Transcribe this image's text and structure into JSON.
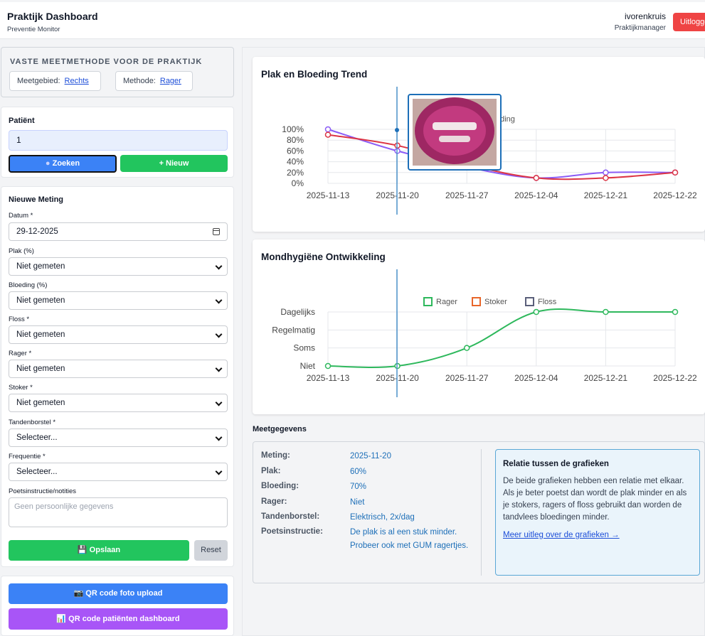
{
  "header": {
    "title": "Praktijk Dashboard",
    "subtitle": "Preventie Monitor",
    "user": "ivorenkruis",
    "role": "Praktijkmanager",
    "logout": "Uitloggen"
  },
  "method": {
    "title": "VASTE MEETMETHODE VOOR DE PRAKTIJK",
    "area_label": "Meetgebied:",
    "area_value": "Rechts",
    "method_label": "Methode:",
    "method_value": "Rager"
  },
  "patient": {
    "title": "Patiënt",
    "value": "1",
    "search": "Zoeken",
    "new": "+ Nieuw"
  },
  "form": {
    "title": "Nieuwe Meting",
    "date_label": "Datum *",
    "date_value": "29-12-2025",
    "plak_label": "Plak (%)",
    "plak_value": "Niet gemeten",
    "bloeding_label": "Bloeding (%)",
    "bloeding_value": "Niet gemeten",
    "floss_label": "Floss *",
    "floss_value": "Niet gemeten",
    "rager_label": "Rager *",
    "rager_value": "Niet gemeten",
    "stoker_label": "Stoker *",
    "stoker_value": "Niet gemeten",
    "tandenborstel_label": "Tandenborstel *",
    "tandenborstel_value": "Selecteer...",
    "frequentie_label": "Frequentie *",
    "frequentie_value": "Selecteer...",
    "notes_label": "Poetsinstructie/notities",
    "notes_placeholder": "Geen persoonlijke gegevens",
    "save": "Opslaan",
    "reset": "Reset"
  },
  "qr": {
    "photo": "QR code foto upload",
    "dashboard": "QR code patiënten dashboard"
  },
  "chart1": {
    "title": "Plak en Bloeding Trend",
    "legend_partial": "eding"
  },
  "chart2": {
    "title": "Mondhygiëne Ontwikkeling"
  },
  "meet": {
    "title": "Meetgegevens",
    "rows": [
      {
        "k": "Meting:",
        "v": "2025-11-20"
      },
      {
        "k": "Plak:",
        "v": "60%"
      },
      {
        "k": "Bloeding:",
        "v": "70%"
      },
      {
        "k": "Rager:",
        "v": "Niet"
      },
      {
        "k": "Tandenborstel:",
        "v": "Elektrisch, 2x/dag"
      },
      {
        "k": "Poetsinstructie:",
        "v": "De plak is al een stuk minder. Probeer ook met GUM ragertjes."
      }
    ]
  },
  "relation": {
    "title": "Relatie tussen de grafieken",
    "text": "De beide grafieken hebben een relatie met elkaar. Als je beter poetst dan wordt de plak minder en als je stokers, ragers of floss gebruikt dan worden de tandvlees bloedingen minder.",
    "link": "Meer uitleg over de grafieken →"
  },
  "colors": {
    "blue": "#3b82f6",
    "green": "#22c55e",
    "purple": "#a855f7",
    "red": "#ef4444",
    "plak": "#8b5cf6",
    "bloeding": "#dc3545",
    "rager": "#2eb85c",
    "stoker": "#e8662a",
    "floss": "#5a5f7a"
  },
  "chart_data": [
    {
      "type": "line",
      "title": "Plak en Bloeding Trend",
      "x": [
        "2025-11-13",
        "2025-11-20",
        "2025-11-27",
        "2025-12-04",
        "2025-12-21",
        "2025-12-22"
      ],
      "yticks": [
        "100%",
        "80%",
        "60%",
        "40%",
        "20%",
        "0%"
      ],
      "ylim": [
        0,
        100
      ],
      "series": [
        {
          "values": [
            100,
            60,
            30,
            10,
            20,
            20
          ]
        },
        {
          "values": [
            90,
            70,
            35,
            10,
            10,
            20
          ]
        }
      ],
      "legend_visible": [
        "eding"
      ]
    },
    {
      "type": "line",
      "title": "Mondhygiëne Ontwikkeling",
      "x": [
        "2025-11-13",
        "2025-11-20",
        "2025-11-27",
        "2025-12-04",
        "2025-12-21",
        "2025-12-22"
      ],
      "yticks": [
        "Dagelijks",
        "Regelmatig",
        "Soms",
        "Niet"
      ],
      "legend": [
        "Rager",
        "Stoker",
        "Floss"
      ],
      "series": [
        {
          "name": "Rager",
          "values": [
            "Niet",
            "Niet",
            "Soms",
            "Dagelijks",
            "Dagelijks",
            "Dagelijks"
          ]
        }
      ]
    }
  ]
}
